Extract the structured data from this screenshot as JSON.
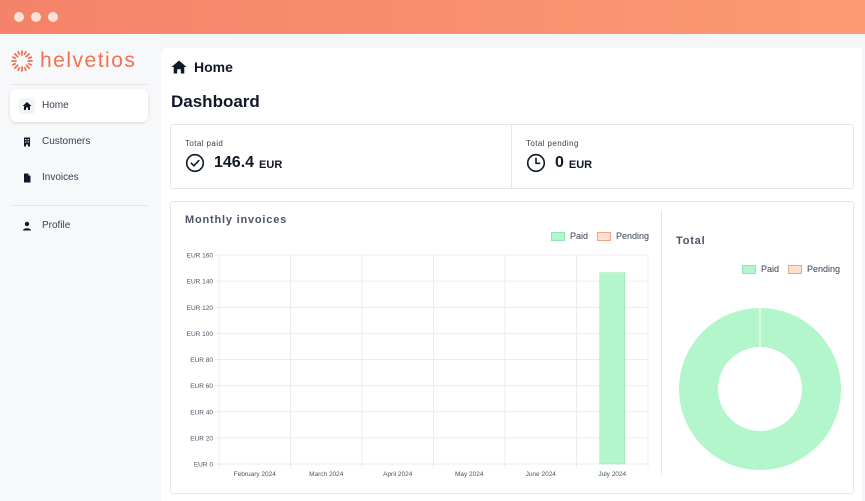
{
  "window": {
    "controls": [
      "close",
      "minimize",
      "maximize"
    ]
  },
  "brand": {
    "name": "helvetios",
    "color": "#f07250",
    "icon": "sun-logo-icon"
  },
  "sidebar": {
    "items": [
      {
        "label": "Home",
        "icon": "home-icon",
        "active": true
      },
      {
        "label": "Customers",
        "icon": "building-icon",
        "active": false
      },
      {
        "label": "Invoices",
        "icon": "document-icon",
        "active": false
      },
      {
        "label": "Profile",
        "icon": "user-icon",
        "active": false
      }
    ]
  },
  "breadcrumb": {
    "label": "Home",
    "icon": "home-icon"
  },
  "page": {
    "title": "Dashboard"
  },
  "stats": {
    "paid": {
      "label": "Total paid",
      "value": "146.4",
      "currency": "EUR",
      "icon": "check-circle-icon"
    },
    "pending": {
      "label": "Total pending",
      "value": "0",
      "currency": "EUR",
      "icon": "clock-icon"
    }
  },
  "colors": {
    "paid_fill": "#b3f6cb",
    "paid_border": "#8ee6b0",
    "pending_fill": "#fde0d0",
    "pending_border": "#f0a58a",
    "accent": "#f07250"
  },
  "chart_data": [
    {
      "type": "bar",
      "title": "Monthly invoices",
      "categories": [
        "February 2024",
        "March 2024",
        "April 2024",
        "May 2024",
        "June 2024",
        "July 2024"
      ],
      "series": [
        {
          "name": "Paid",
          "values": [
            0,
            0,
            0,
            0,
            0,
            146.4
          ]
        },
        {
          "name": "Pending",
          "values": [
            0,
            0,
            0,
            0,
            0,
            0
          ]
        }
      ],
      "y_ticks": [
        "EUR 0",
        "EUR 20",
        "EUR 40",
        "EUR 60",
        "EUR 80",
        "EUR 100",
        "EUR 120",
        "EUR 140",
        "EUR 160"
      ],
      "ylim": [
        0,
        160
      ],
      "legend": "top-right",
      "grid": true
    },
    {
      "type": "pie",
      "variant": "doughnut",
      "title": "Total",
      "labels": [
        "Paid",
        "Pending"
      ],
      "values": [
        146.4,
        0
      ],
      "legend": "top-right"
    }
  ]
}
